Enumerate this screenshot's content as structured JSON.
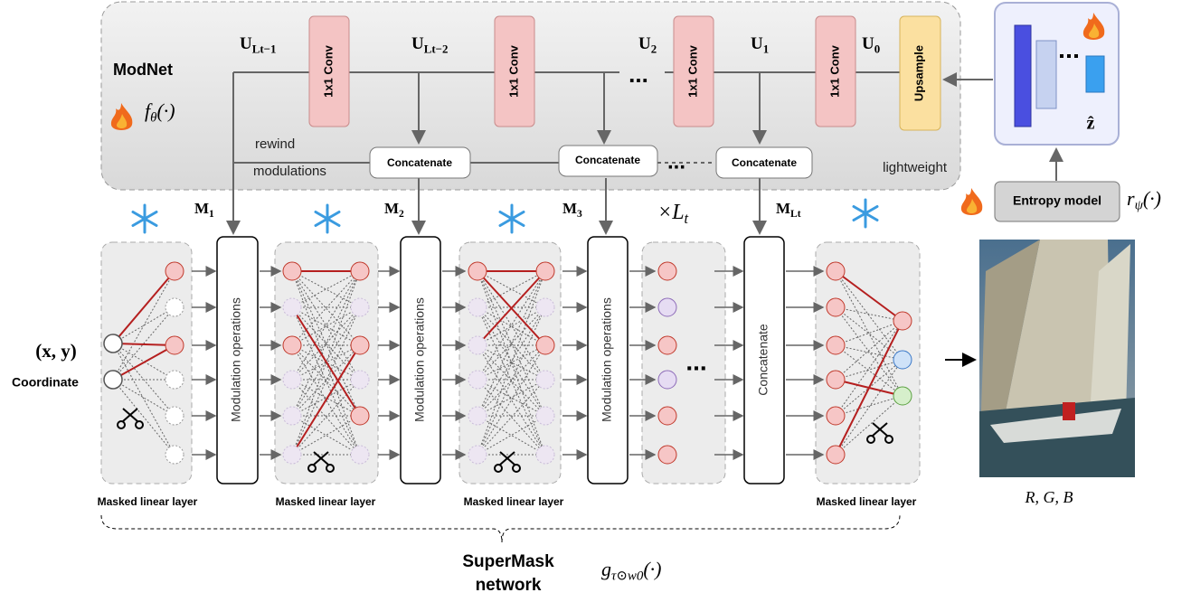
{
  "modnet": {
    "title": "ModNet",
    "function": {
      "base": "f",
      "sub": "θ",
      "tail": "(·)"
    },
    "u_labels": [
      {
        "base": "U",
        "sub": "Lt−1"
      },
      {
        "base": "U",
        "sub": "Lt−2"
      },
      {
        "base": "U",
        "sub": "2"
      },
      {
        "base": "U",
        "sub": "1"
      },
      {
        "base": "U",
        "sub": "0"
      }
    ],
    "convs": [
      "1x1 Conv",
      "1x1 Conv",
      "1x1 Conv",
      "1x1 Conv"
    ],
    "upsample": "Upsample",
    "ellipsis_top": "...",
    "rewind": "rewind",
    "modulations": "modulations",
    "concatenates": [
      "Concatenate",
      "Concatenate",
      "Concatenate"
    ],
    "ellipsis_mid": "...",
    "lightweight": "lightweight"
  },
  "encoder": {
    "latent": "ẑ",
    "entropy_model": "Entropy model",
    "function": {
      "base": "r",
      "sub": "ψ",
      "tail": "(·)"
    }
  },
  "supermask": {
    "m_labels": [
      {
        "base": "M",
        "sub": "1"
      },
      {
        "base": "M",
        "sub": "2"
      },
      {
        "base": "M",
        "sub": "3"
      },
      {
        "base": "M",
        "sub": "Lt"
      }
    ],
    "repeat": {
      "base": "×L",
      "sub": "t"
    },
    "modulation_ops": [
      "Modulation operations",
      "Modulation operations",
      "Modulation operations"
    ],
    "concatenate": "Concatenate",
    "ellipsis": "...",
    "input_label": "(x, y)",
    "input_caption": "Coordinate",
    "layer_labels": [
      "Masked linear layer",
      "Masked linear layer",
      "Masked linear layer",
      "Masked linear layer"
    ],
    "title_lines": [
      "SuperMask",
      "network"
    ],
    "function": {
      "base": "g",
      "sub": "τ⊙w0",
      "tail": "(·)"
    },
    "output_label": "R, G, B"
  }
}
